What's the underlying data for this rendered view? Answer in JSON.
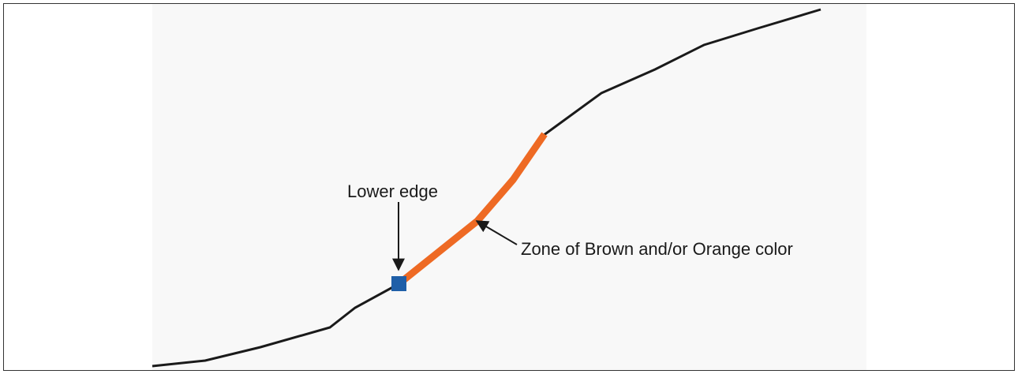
{
  "labels": {
    "lower_edge": "Lower edge",
    "zone": "Zone of Brown and/or Orange color"
  }
}
